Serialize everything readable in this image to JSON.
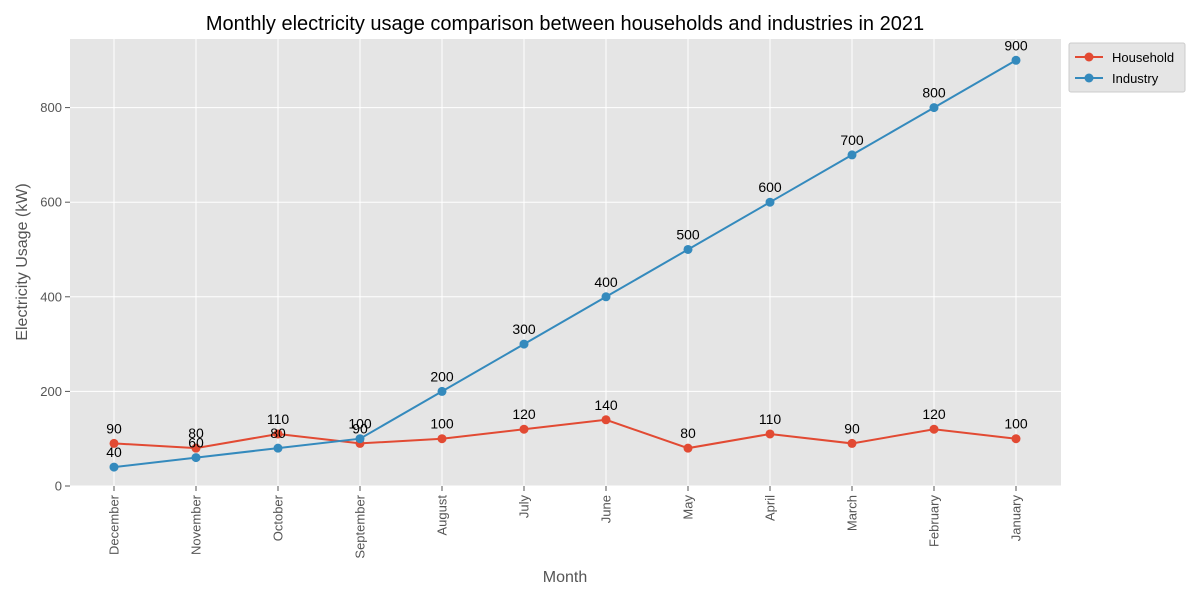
{
  "chart_data": {
    "type": "line",
    "title": "Monthly electricity usage comparison between households and industries in 2021",
    "xlabel": "Month",
    "ylabel": "Electricity Usage (kW)",
    "categories": [
      "December",
      "November",
      "October",
      "September",
      "August",
      "July",
      "June",
      "May",
      "April",
      "March",
      "February",
      "January"
    ],
    "series": [
      {
        "name": "Household",
        "values": [
          90,
          80,
          110,
          90,
          100,
          120,
          140,
          80,
          110,
          90,
          120,
          100
        ],
        "color": "#E24A33"
      },
      {
        "name": "Industry",
        "values": [
          40,
          60,
          80,
          100,
          200,
          300,
          400,
          500,
          600,
          700,
          800,
          900
        ],
        "color": "#348ABD"
      }
    ],
    "yticks": [
      0,
      200,
      400,
      600,
      800
    ],
    "ylim": [
      0,
      945
    ],
    "grid": true,
    "legend": "upper-right-outside",
    "background": "#E5E5E5",
    "data_labels": true
  }
}
